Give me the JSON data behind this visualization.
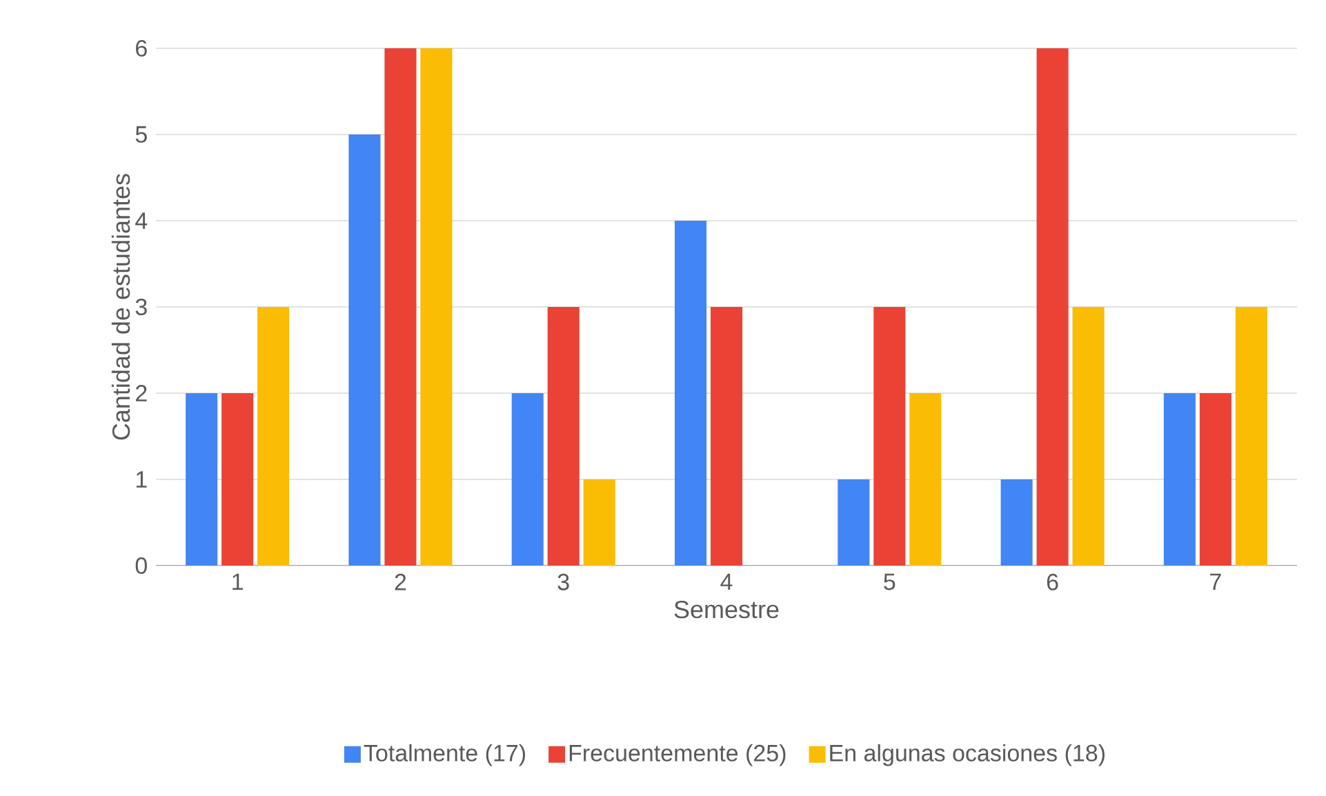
{
  "chart_data": {
    "type": "bar",
    "xlabel": "Semestre",
    "ylabel": "Cantidad de estudiantes",
    "categories": [
      "1",
      "2",
      "3",
      "4",
      "5",
      "6",
      "7"
    ],
    "series": [
      {
        "name": "Totalmente (17)",
        "color": "#4285f4",
        "values": [
          2,
          5,
          2,
          4,
          1,
          1,
          2
        ]
      },
      {
        "name": "Frecuentemente (25)",
        "color": "#ea4335",
        "values": [
          2,
          6,
          3,
          3,
          3,
          6,
          2
        ]
      },
      {
        "name": "En algunas ocasiones (18)",
        "color": "#fbbc04",
        "values": [
          3,
          6,
          1,
          0,
          2,
          3,
          3
        ]
      }
    ],
    "ylim": [
      0,
      6
    ],
    "yticks": [
      0,
      1,
      2,
      3,
      4,
      5,
      6
    ],
    "grid": "y",
    "legend": "bottom"
  }
}
